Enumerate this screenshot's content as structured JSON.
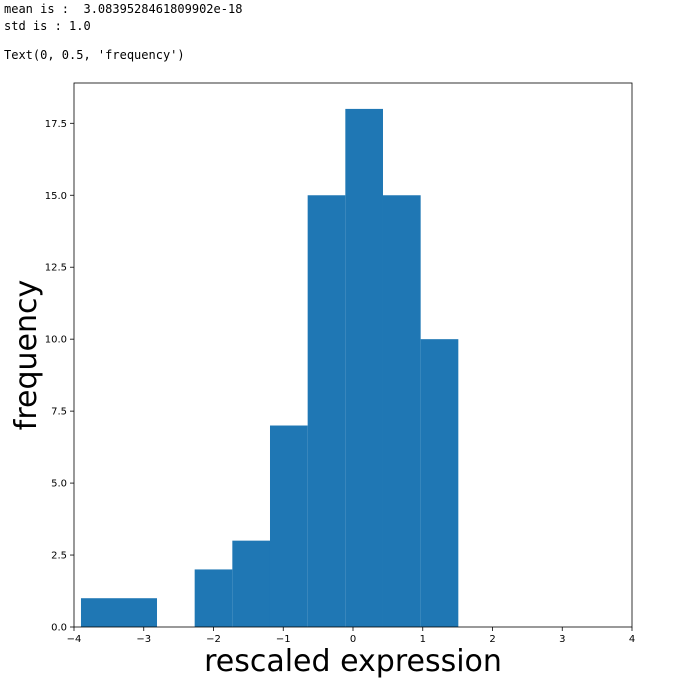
{
  "output": {
    "line1": "mean is :  3.0839528461809902e-18",
    "line2": "std is : 1.0",
    "line3": "Text(0, 0.5, 'frequency')"
  },
  "chart_data": {
    "type": "bar",
    "title": "",
    "xlabel": "rescaled expression",
    "ylabel": "frequency",
    "xlim": [
      -4,
      4
    ],
    "ylim": [
      0,
      18.9
    ],
    "xticks": [
      -4,
      -3,
      -2,
      -1,
      0,
      1,
      2,
      3,
      4
    ],
    "xtick_labels": [
      "−4",
      "−3",
      "−2",
      "−1",
      "0",
      "1",
      "2",
      "3",
      "4"
    ],
    "yticks": [
      0,
      2.5,
      5,
      7.5,
      10,
      12.5,
      15,
      17.5
    ],
    "ytick_labels": [
      "0.0",
      "2.5",
      "5.0",
      "7.5",
      "10.0",
      "12.5",
      "15.0",
      "17.5"
    ],
    "bins": [
      {
        "x0": -3.9,
        "x1": -2.81,
        "count": 1
      },
      {
        "x0": -2.81,
        "x1": -2.27,
        "count": 0
      },
      {
        "x0": -2.27,
        "x1": -1.73,
        "count": 2
      },
      {
        "x0": -1.73,
        "x1": -1.19,
        "count": 3
      },
      {
        "x0": -1.19,
        "x1": -0.65,
        "count": 7
      },
      {
        "x0": -0.65,
        "x1": -0.11,
        "count": 15
      },
      {
        "x0": -0.11,
        "x1": 0.43,
        "count": 18
      },
      {
        "x0": 0.43,
        "x1": 0.97,
        "count": 15
      },
      {
        "x0": 0.97,
        "x1": 1.51,
        "count": 10
      }
    ],
    "color": "#1f77b4",
    "grid": false
  }
}
